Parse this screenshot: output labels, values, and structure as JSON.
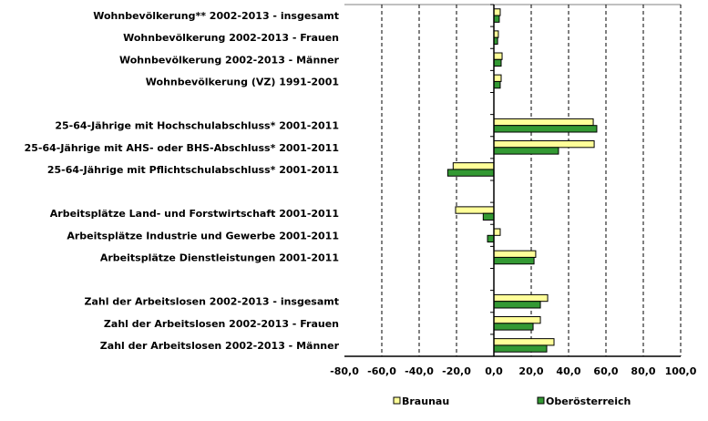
{
  "chart_data": {
    "type": "bar",
    "orientation": "horizontal",
    "title": "",
    "xlabel": "",
    "ylabel": "",
    "xlim": [
      -80,
      100
    ],
    "xticks": [
      -80,
      -60,
      -40,
      -20,
      0,
      20,
      40,
      60,
      80,
      100
    ],
    "xtick_labels": [
      "-80,0",
      "-60,0",
      "-40,0",
      "-20,0",
      "0,0",
      "20,0",
      "40,0",
      "60,0",
      "80,0",
      "100,0"
    ],
    "grid": "vertical dashed",
    "legend_position": "bottom",
    "categories": [
      "Wohnbevölkerung** 2002-2013 - insgesamt",
      "Wohnbevölkerung 2002-2013 - Frauen",
      "Wohnbevölkerung 2002-2013 - Männer",
      "Wohnbevölkerung (VZ) 1991-2001",
      "",
      "25-64-Jährige mit Hochschulabschluss* 2001-2011",
      "25-64-Jährige mit AHS- oder BHS-Abschluss* 2001-2011",
      "25-64-Jährige mit Pflichtschulabschluss* 2001-2011",
      "",
      "Arbeitsplätze Land- und Forstwirtschaft 2001-2011",
      "Arbeitsplätze Industrie und Gewerbe 2001-2011",
      "Arbeitsplätze Dienstleistungen 2001-2011",
      "",
      "Zahl der Arbeitslosen 2002-2013 - insgesamt",
      "Zahl der Arbeitslosen 2002-2013 - Frauen",
      "Zahl der Arbeitslosen 2002-2013 - Männer"
    ],
    "series": [
      {
        "name": "Braunau",
        "color": "#ffff99",
        "values": [
          3.4,
          2.4,
          4.4,
          3.9,
          null,
          53.2,
          53.7,
          -21.8,
          null,
          -20.5,
          3.4,
          22.4,
          null,
          28.8,
          24.9,
          32.2
        ]
      },
      {
        "name": "Oberösterreich",
        "color": "#339933",
        "values": [
          2.9,
          2.0,
          3.9,
          3.4,
          null,
          55.1,
          34.6,
          -24.7,
          null,
          -5.7,
          -3.4,
          21.5,
          null,
          24.9,
          21.0,
          28.3
        ]
      }
    ]
  }
}
